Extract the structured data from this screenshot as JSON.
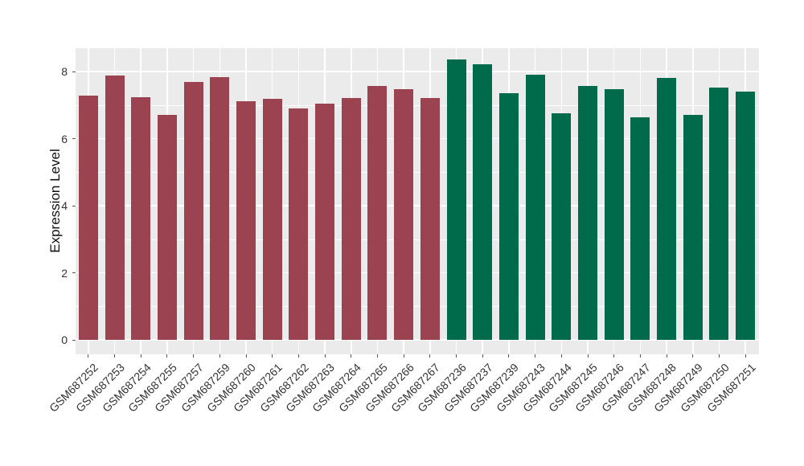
{
  "chart_data": {
    "type": "bar",
    "title": "",
    "xlabel": "",
    "ylabel": "Expression Level",
    "y_ticks": [
      0,
      2,
      4,
      6,
      8
    ],
    "y_minor_ticks": [
      1,
      3,
      5,
      7
    ],
    "ylim": [
      -0.43,
      8.69
    ],
    "grid": "on",
    "legend": "none",
    "panel_bg": "#EBEBEB",
    "grid_color": "#FFFFFF",
    "bar_color_left_group": "#9C4352",
    "bar_color_right_group": "#006B4A",
    "left_group_count": 14,
    "categories": [
      "GSM687252",
      "GSM687253",
      "GSM687254",
      "GSM687255",
      "GSM687257",
      "GSM687259",
      "GSM687260",
      "GSM687261",
      "GSM687262",
      "GSM687263",
      "GSM687264",
      "GSM687265",
      "GSM687266",
      "GSM687267",
      "GSM687236",
      "GSM687237",
      "GSM687239",
      "GSM687243",
      "GSM687244",
      "GSM687245",
      "GSM687246",
      "GSM687247",
      "GSM687248",
      "GSM687249",
      "GSM687250",
      "GSM687251"
    ],
    "values": [
      7.28,
      7.89,
      7.23,
      6.7,
      7.68,
      7.84,
      7.12,
      7.19,
      6.89,
      7.04,
      7.22,
      7.57,
      7.47,
      7.22,
      8.35,
      8.22,
      7.36,
      7.91,
      6.76,
      7.57,
      7.48,
      6.63,
      7.81,
      6.7,
      7.52,
      7.4
    ]
  }
}
